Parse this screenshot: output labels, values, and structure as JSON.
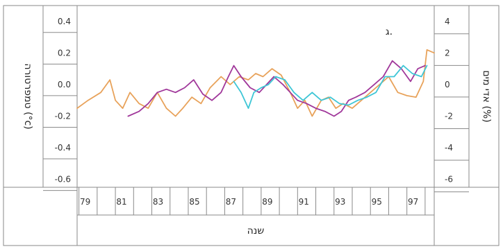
{
  "chart_data": {
    "type": "line",
    "panel_label": "ג.",
    "xlabel": "שנה",
    "ylabel_left": "טמפרטורה (°c)",
    "ylabel_right": "אדי מים (%)",
    "x_ticks": [
      "79",
      "81",
      "83",
      "85",
      "87",
      "89",
      "91",
      "93",
      "95",
      "97"
    ],
    "y_left_ticks": [
      "0.4",
      "0.2",
      "0.0",
      "-0.2",
      "-0.4",
      "-0.6"
    ],
    "y_right_ticks": [
      "4",
      "2",
      "0",
      "-2",
      "-4",
      "-6"
    ],
    "xlim": [
      1978.9,
      1998.5
    ],
    "ylim_left": [
      -0.65,
      0.5
    ],
    "ylim_right": [
      -6.5,
      5
    ],
    "grid": false,
    "series": [
      {
        "color": "#e8a25a",
        "x": [
          1978.9,
          1979.5,
          1980.2,
          1980.7,
          1981.0,
          1981.4,
          1981.8,
          1982.3,
          1982.8,
          1983.3,
          1983.8,
          1984.3,
          1984.7,
          1985.2,
          1985.7,
          1986.2,
          1986.8,
          1987.3,
          1987.8,
          1988.3,
          1988.7,
          1989.1,
          1989.6,
          1990.1,
          1990.6,
          1991.0,
          1991.4,
          1991.8,
          1992.3,
          1992.7,
          1993.1,
          1993.5,
          1994.0,
          1994.5,
          1995.0,
          1995.5,
          1996.0,
          1996.5,
          1997.0,
          1997.5,
          1997.9,
          1998.1,
          1998.5
        ],
        "y": [
          -0.15,
          -0.1,
          -0.05,
          0.03,
          -0.1,
          -0.15,
          -0.05,
          -0.12,
          -0.15,
          -0.05,
          -0.15,
          -0.2,
          -0.15,
          -0.08,
          -0.12,
          -0.02,
          0.05,
          0.0,
          0.05,
          0.03,
          0.07,
          0.05,
          0.1,
          0.06,
          -0.05,
          -0.15,
          -0.1,
          -0.2,
          -0.1,
          -0.08,
          -0.15,
          -0.12,
          -0.15,
          -0.1,
          -0.05,
          0.0,
          0.05,
          -0.05,
          -0.07,
          -0.08,
          0.02,
          0.22,
          0.2
        ]
      },
      {
        "color": "#a0379a",
        "x": [
          1981.7,
          1982.3,
          1982.8,
          1983.3,
          1983.8,
          1984.3,
          1984.8,
          1985.3,
          1985.8,
          1986.3,
          1986.8,
          1987.2,
          1987.5,
          1987.9,
          1988.4,
          1988.9,
          1989.3,
          1989.7,
          1990.2,
          1990.6,
          1991.0,
          1991.5,
          1992.0,
          1992.5,
          1993.0,
          1993.4,
          1993.8,
          1994.2,
          1994.7,
          1995.2,
          1995.7,
          1996.2,
          1996.7,
          1997.2,
          1997.6,
          1998.0
        ],
        "y": [
          -0.2,
          -0.17,
          -0.12,
          -0.05,
          -0.03,
          -0.05,
          -0.02,
          0.03,
          -0.06,
          -0.1,
          -0.05,
          0.05,
          0.12,
          0.05,
          -0.02,
          -0.05,
          0.0,
          0.05,
          0.0,
          -0.05,
          -0.1,
          -0.12,
          -0.15,
          -0.17,
          -0.2,
          -0.17,
          -0.1,
          -0.08,
          -0.05,
          0.0,
          0.05,
          0.15,
          0.1,
          0.02,
          0.1,
          0.12
        ]
      },
      {
        "color": "#3ec6d6",
        "x": [
          1987.5,
          1987.9,
          1988.3,
          1988.6,
          1989.0,
          1989.4,
          1989.8,
          1990.3,
          1990.8,
          1991.3,
          1991.8,
          1992.3,
          1992.8,
          1993.3,
          1993.8,
          1994.3,
          1994.8,
          1995.3,
          1995.8,
          1996.3,
          1996.8,
          1997.3,
          1997.8,
          1998.1
        ],
        "y": [
          0.02,
          -0.05,
          -0.15,
          -0.05,
          -0.02,
          0.0,
          0.05,
          0.03,
          -0.05,
          -0.1,
          -0.05,
          -0.1,
          -0.08,
          -0.12,
          -0.13,
          -0.1,
          -0.08,
          -0.05,
          0.05,
          0.05,
          0.12,
          0.07,
          0.05,
          0.12
        ]
      }
    ]
  }
}
